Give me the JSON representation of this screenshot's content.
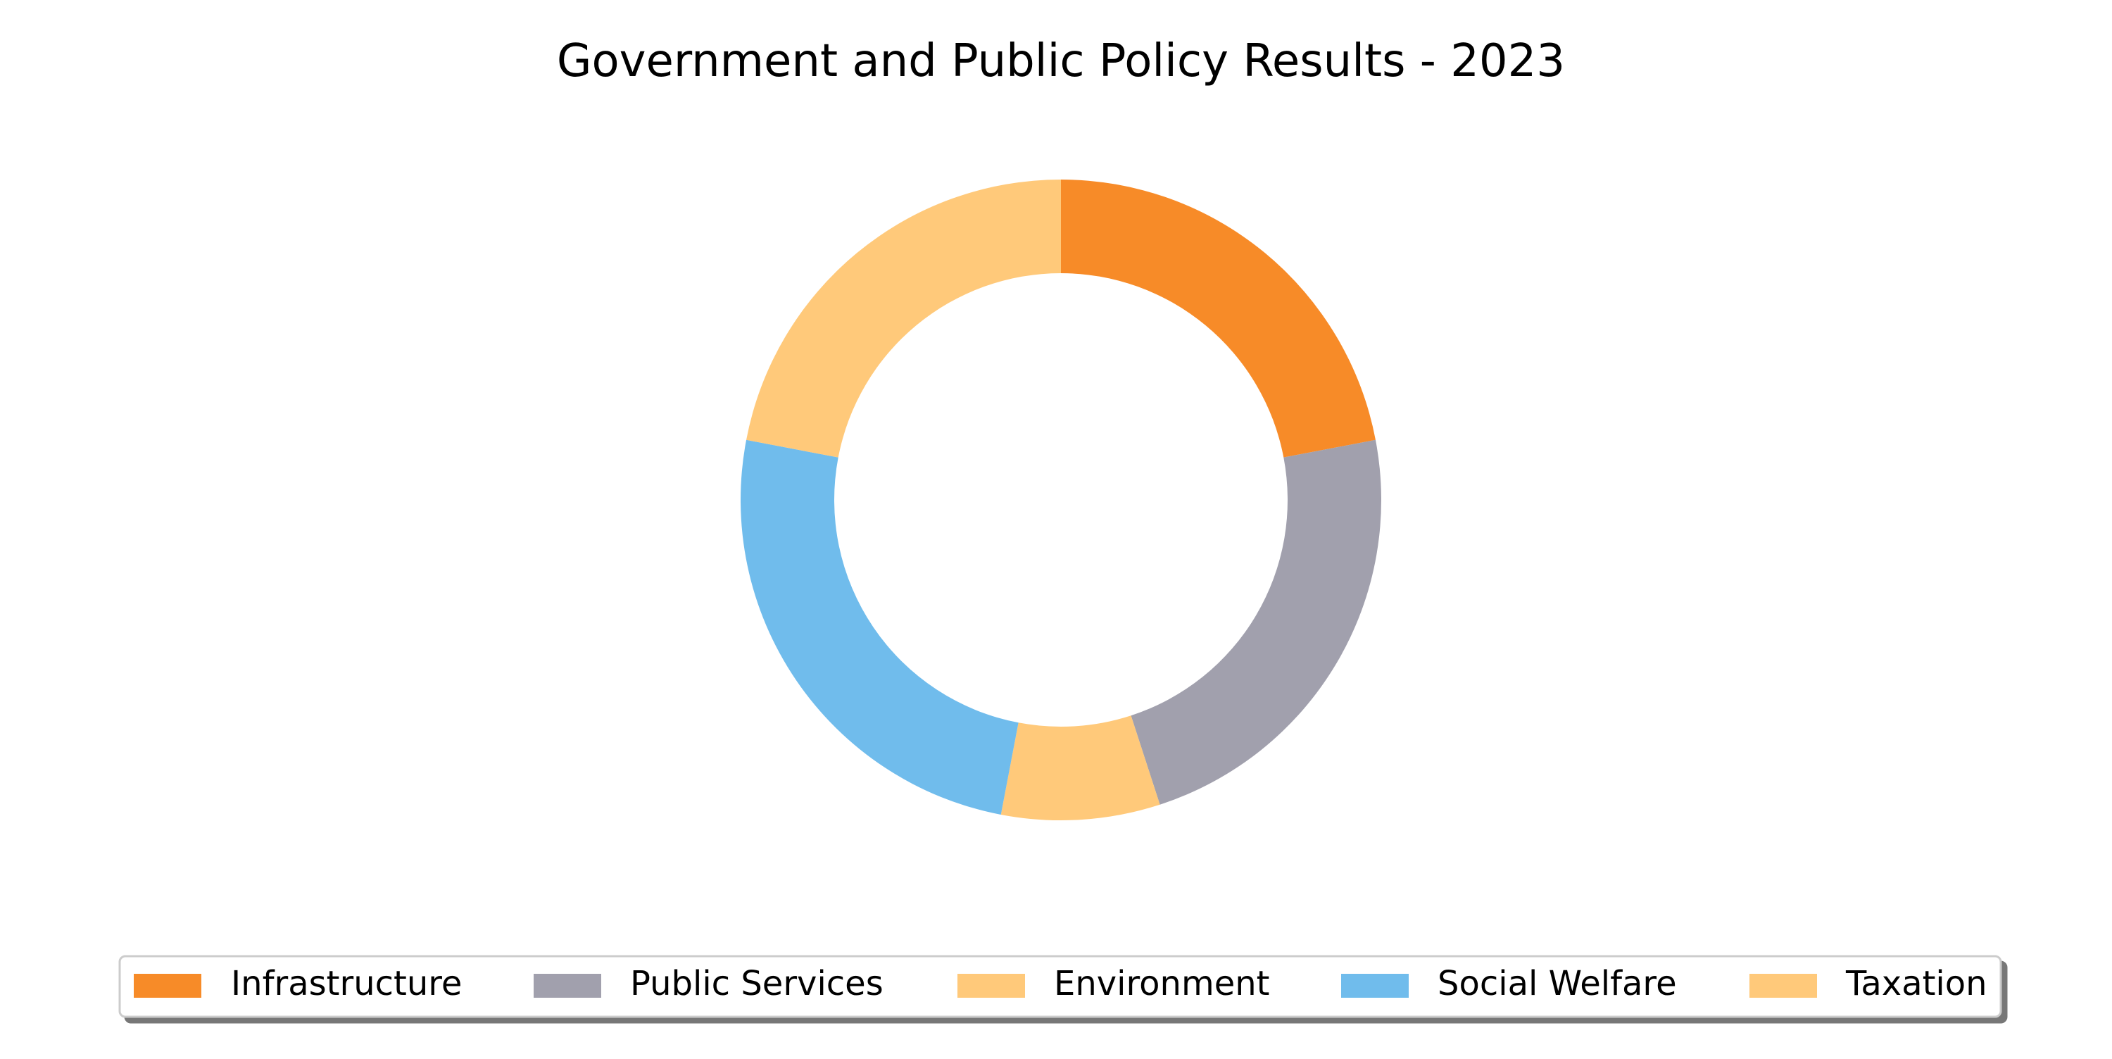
{
  "chart_data": {
    "type": "pie",
    "subtype": "donut",
    "title": "Government and Public Policy Results - 2023",
    "categories": [
      "Infrastructure",
      "Public Services",
      "Environment",
      "Social Welfare",
      "Taxation"
    ],
    "values": [
      22,
      23,
      8,
      25,
      22
    ],
    "colors": [
      "#f78b28",
      "#a1a0ad",
      "#ffc97a",
      "#70bcec",
      "#ffc97a"
    ],
    "start_angle_deg": 90,
    "direction": "clockwise",
    "legend": {
      "placement": "bottom-center",
      "entries": [
        "Infrastructure",
        "Public Services",
        "Environment",
        "Social Welfare",
        "Taxation"
      ]
    }
  }
}
